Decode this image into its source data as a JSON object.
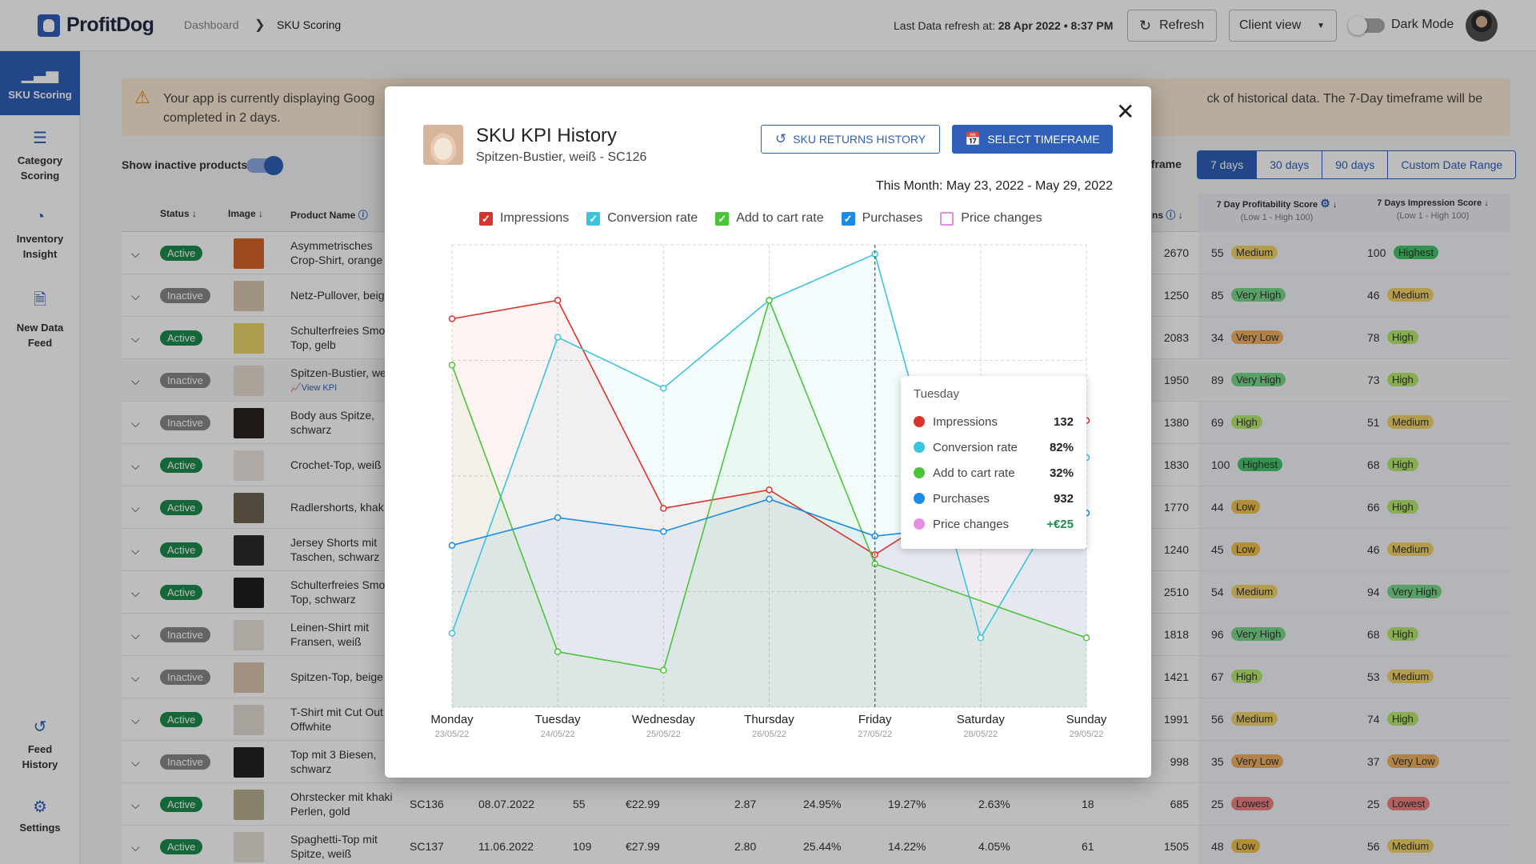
{
  "app": {
    "name": "ProfitDog"
  },
  "breadcrumb": {
    "parent": "Dashboard",
    "current": "SKU Scoring"
  },
  "header": {
    "refresh_prefix": "Last Data refresh at:",
    "refresh_time": "28 Apr 2022 • 8:37 PM",
    "refresh_button": "Refresh",
    "client_view": "Client view",
    "dark_mode": "Dark Mode"
  },
  "sidebar": {
    "items": [
      {
        "label": "SKU Scoring",
        "icon": "bar-chart-icon"
      },
      {
        "label": "Category Scoring",
        "icon": "list-icon"
      },
      {
        "label": "Inventory Insight",
        "icon": "gauge-icon"
      },
      {
        "label": "New Data Feed",
        "icon": "document-icon"
      },
      {
        "label": "Feed History",
        "icon": "history-icon"
      },
      {
        "label": "Settings",
        "icon": "gear-icon"
      }
    ]
  },
  "banner": {
    "text_start": "Your app is currently displaying Goog",
    "text_end": "ck of historical data. The 7-Day timeframe will be",
    "text_line2": "completed in 2 days."
  },
  "filters": {
    "show_inactive": "Show inactive products",
    "timeframe_label": "eframe",
    "timeframes": [
      "7 days",
      "30 days",
      "90 days",
      "Custom Date Range"
    ],
    "selected": "7 days"
  },
  "table": {
    "columns": {
      "status": "Status",
      "image": "Image",
      "product_name": "Product Name",
      "impressions_tail": "ns",
      "profit_score": "7 Day Profitability Score",
      "profit_sub": "(Low 1 - High 100)",
      "impression_score": "7 Days Impression Score",
      "impression_sub": "(Low 1 - High 100)"
    },
    "view_kpi": "View KPI",
    "rows": [
      {
        "status": "Active",
        "name1": "Asymmetrisches",
        "name2": "Crop-Shirt, orange",
        "imp": "2670",
        "ps": "55",
        "pl": "Medium",
        "is": "100",
        "il": "Highest"
      },
      {
        "status": "Inactive",
        "name1": "Netz-Pullover, beig",
        "name2": "",
        "imp": "1250",
        "ps": "85",
        "pl": "Very High",
        "is": "46",
        "il": "Medium"
      },
      {
        "status": "Active",
        "name1": "Schulterfreies Smo",
        "name2": "Top, gelb",
        "imp": "2083",
        "ps": "34",
        "pl": "Very Low",
        "is": "78",
        "il": "High"
      },
      {
        "status": "Inactive",
        "name1": "Spitzen-Bustier, we",
        "name2": "",
        "imp": "1950",
        "ps": "89",
        "pl": "Very High",
        "is": "73",
        "il": "High"
      },
      {
        "status": "Inactive",
        "name1": "Body aus Spitze,",
        "name2": "schwarz",
        "imp": "1380",
        "ps": "69",
        "pl": "High",
        "is": "51",
        "il": "Medium"
      },
      {
        "status": "Active",
        "name1": "Crochet-Top, weiß",
        "name2": "",
        "imp": "1830",
        "ps": "100",
        "pl": "Highest",
        "is": "68",
        "il": "High"
      },
      {
        "status": "Active",
        "name1": "Radlershorts, khak",
        "name2": "",
        "imp": "1770",
        "ps": "44",
        "pl": "Low",
        "is": "66",
        "il": "High"
      },
      {
        "status": "Active",
        "name1": "Jersey Shorts mit",
        "name2": "Taschen, schwarz",
        "imp": "1240",
        "ps": "45",
        "pl": "Low",
        "is": "46",
        "il": "Medium"
      },
      {
        "status": "Active",
        "name1": "Schulterfreies Smo",
        "name2": "Top, schwarz",
        "imp": "2510",
        "ps": "54",
        "pl": "Medium",
        "is": "94",
        "il": "Very High"
      },
      {
        "status": "Inactive",
        "name1": "Leinen-Shirt mit",
        "name2": "Fransen, weiß",
        "imp": "1818",
        "ps": "96",
        "pl": "Very High",
        "is": "68",
        "il": "High"
      },
      {
        "status": "Inactive",
        "name1": "Spitzen-Top, beige",
        "name2": "",
        "imp": "1421",
        "ps": "67",
        "pl": "High",
        "is": "53",
        "il": "Medium"
      },
      {
        "status": "Active",
        "name1": "T-Shirt mit Cut Out",
        "name2": "Offwhite",
        "imp": "1991",
        "ps": "56",
        "pl": "Medium",
        "is": "74",
        "il": "High"
      },
      {
        "status": "Inactive",
        "name1": "Top mit 3 Biesen,",
        "name2": "schwarz",
        "imp": "998",
        "ps": "35",
        "pl": "Very Low",
        "is": "37",
        "il": "Very Low"
      },
      {
        "status": "Active",
        "name1": "Ohrstecker mit khaki",
        "name2": "Perlen, gold",
        "sku": "SC136",
        "date": "08.07.2022",
        "c1": "55",
        "price": "€22.99",
        "c2": "2.87",
        "c3": "24.95%",
        "c4": "19.27%",
        "c5": "2.63%",
        "c6": "18",
        "imp": "685",
        "ps": "25",
        "pl": "Lowest",
        "is": "25",
        "il": "Lowest"
      },
      {
        "status": "Active",
        "name1": "Spaghetti-Top mit",
        "name2": "Spitze, weiß",
        "sku": "SC137",
        "date": "11.06.2022",
        "c1": "109",
        "price": "€27.99",
        "c2": "2.80",
        "c3": "25.44%",
        "c4": "14.22%",
        "c5": "4.05%",
        "c6": "61",
        "imp": "1505",
        "ps": "48",
        "pl": "Low",
        "is": "56",
        "il": "Medium"
      }
    ]
  },
  "modal": {
    "title": "SKU KPI History",
    "subtitle": "Spitzen-Bustier, weiß - SC126",
    "returns_button": "SKU RETURNS HISTORY",
    "timeframe_button": "SELECT TIMEFRAME",
    "month_range": "This Month: May 23, 2022 - May 29, 2022",
    "legend": [
      {
        "label": "Impressions",
        "color": "#d9342b",
        "checked": true
      },
      {
        "label": "Conversion rate",
        "color": "#3cc3dd",
        "checked": true
      },
      {
        "label": "Add to cart rate",
        "color": "#4cc43a",
        "checked": true
      },
      {
        "label": "Purchases",
        "color": "#1a8ce6",
        "checked": true
      },
      {
        "label": "Price changes",
        "color": "#e58de0",
        "checked": false
      }
    ],
    "tooltip": {
      "title": "Tuesday",
      "rows": [
        {
          "label": "Impressions",
          "value": "132",
          "color": "#d9342b"
        },
        {
          "label": "Conversion rate",
          "value": "82%",
          "color": "#3cc3dd"
        },
        {
          "label": "Add to cart rate",
          "value": "32%",
          "color": "#4cc43a"
        },
        {
          "label": "Purchases",
          "value": "932",
          "color": "#1a8ce6"
        },
        {
          "label": "Price changes",
          "value": "+€25",
          "color": "#e58de0"
        }
      ]
    }
  },
  "chart_data": {
    "type": "area",
    "categories": [
      "Monday",
      "Tuesday",
      "Wednesday",
      "Thursday",
      "Friday",
      "Saturday",
      "Sunday"
    ],
    "dates": [
      "23/05/22",
      "24/05/22",
      "25/05/22",
      "26/05/22",
      "27/05/22",
      "28/05/22",
      "29/05/22"
    ],
    "ylim": [
      0,
      100
    ],
    "highlight_index": 4,
    "series": [
      {
        "name": "Impressions",
        "color": "#d9342b",
        "values": [
          84,
          88,
          43,
          47,
          33,
          null,
          62
        ]
      },
      {
        "name": "Conversion rate",
        "color": "#3cc3dd",
        "values": [
          16,
          80,
          69,
          88,
          98,
          15,
          54
        ]
      },
      {
        "name": "Add to cart rate",
        "color": "#4cc43a",
        "values": [
          74,
          12,
          8,
          88,
          31,
          null,
          15
        ]
      },
      {
        "name": "Purchases",
        "color": "#1a8ce6",
        "values": [
          35,
          41,
          38,
          45,
          37,
          null,
          42
        ]
      }
    ]
  }
}
